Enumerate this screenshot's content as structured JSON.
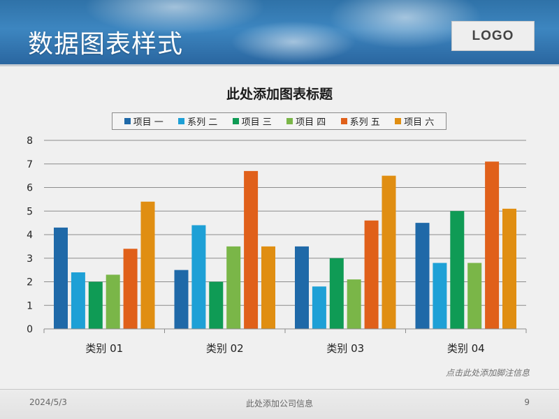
{
  "header": {
    "title": "数据图表样式",
    "logo": "LOGO"
  },
  "chart_data": {
    "type": "bar",
    "title": "此处添加图表标题",
    "categories": [
      "类别 01",
      "类别 02",
      "类别 03",
      "类别 04"
    ],
    "series": [
      {
        "name": "项目 一",
        "color": "#1f69a8",
        "values": [
          4.3,
          2.5,
          3.5,
          4.5
        ]
      },
      {
        "name": "系列 二",
        "color": "#1ea0d6",
        "values": [
          2.4,
          4.4,
          1.8,
          2.8
        ]
      },
      {
        "name": "项目 三",
        "color": "#0f9b55",
        "values": [
          2.0,
          2.0,
          3.0,
          5.0
        ]
      },
      {
        "name": "项目 四",
        "color": "#7ab648",
        "values": [
          2.3,
          3.5,
          2.1,
          2.8
        ]
      },
      {
        "name": "系列 五",
        "color": "#e0601a",
        "values": [
          3.4,
          6.7,
          4.6,
          7.1
        ]
      },
      {
        "name": "项目 六",
        "color": "#e08e12",
        "values": [
          5.4,
          3.5,
          6.5,
          5.1
        ]
      }
    ],
    "ylim": [
      0,
      8
    ],
    "yticks": [
      0,
      1,
      2,
      3,
      4,
      5,
      6,
      7,
      8
    ],
    "grid": true,
    "legend_position": "top"
  },
  "note": "点击此处添加脚注信息",
  "footer": {
    "date": "2024/5/3",
    "company": "此处添加公司信息",
    "page": "9"
  }
}
